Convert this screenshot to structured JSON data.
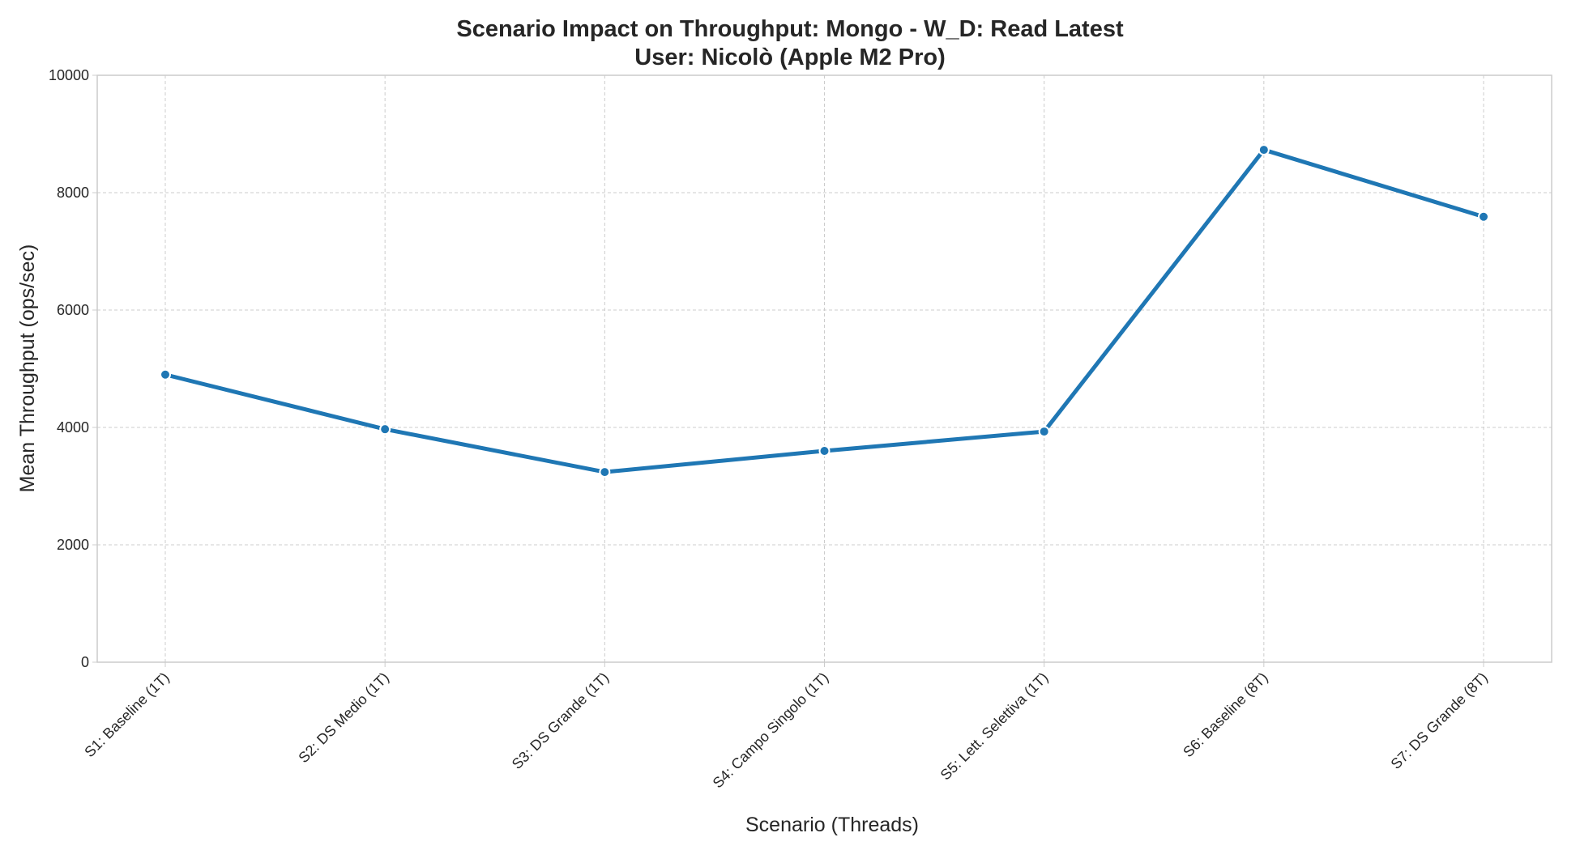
{
  "chart_data": {
    "type": "line",
    "title_lines": [
      "Scenario Impact on Throughput: Mongo - W_D: Read Latest",
      "User: Nicolò (Apple M2 Pro)"
    ],
    "xlabel": "Scenario (Threads)",
    "ylabel": "Mean Throughput (ops/sec)",
    "categories": [
      "S1: Baseline (1T)",
      "S2: DS Medio (1T)",
      "S3: DS Grande (1T)",
      "S4: Campo Singolo (1T)",
      "S5: Lett. Selettiva (1T)",
      "S6: Baseline (8T)",
      "S7: DS Grande (8T)"
    ],
    "series": [
      {
        "values": [
          4900,
          3970,
          3240,
          3600,
          3930,
          8730,
          7590
        ],
        "color": "#1f77b4"
      }
    ],
    "ylim": [
      0,
      10000
    ],
    "yticks": [
      0,
      2000,
      4000,
      6000,
      8000,
      10000
    ],
    "grid": true,
    "legend": "none"
  }
}
